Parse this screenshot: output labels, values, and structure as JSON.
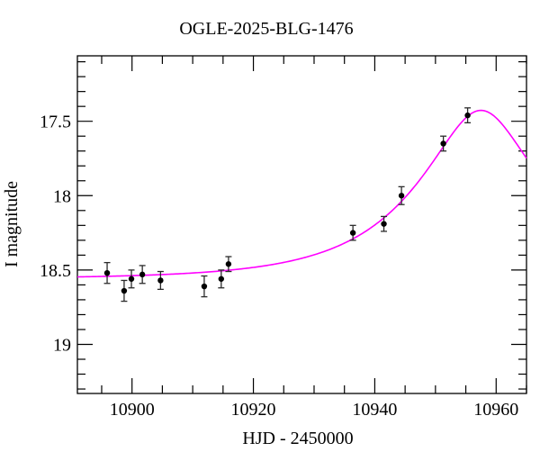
{
  "title": "OGLE-2025-BLG-1476",
  "chart_data": {
    "type": "scatter",
    "title": "OGLE-2025-BLG-1476",
    "xlabel": "HJD - 2450000",
    "ylabel": "I magnitude",
    "x_axis": {
      "lim": [
        10891,
        10965
      ],
      "major_ticks": [
        10900,
        10920,
        10940,
        10960
      ],
      "major_tick_labels": [
        "10900",
        "10920",
        "10940",
        "10960"
      ],
      "minor_step": 5
    },
    "y_axis": {
      "inverted": true,
      "lim_bottom_top": [
        19.33,
        17.06
      ],
      "major_ticks": [
        17.5,
        18.0,
        18.5,
        19.0
      ],
      "major_tick_labels": [
        "17.5",
        "18",
        "18.5",
        "19"
      ],
      "minor_step": 0.1
    },
    "grid": false,
    "legend": null,
    "points": [
      {
        "t": 10895.9,
        "mag": 18.52,
        "err": 0.07
      },
      {
        "t": 10898.7,
        "mag": 18.64,
        "err": 0.07
      },
      {
        "t": 10899.9,
        "mag": 18.56,
        "err": 0.06
      },
      {
        "t": 10901.7,
        "mag": 18.53,
        "err": 0.06
      },
      {
        "t": 10904.7,
        "mag": 18.57,
        "err": 0.06
      },
      {
        "t": 10911.9,
        "mag": 18.61,
        "err": 0.07
      },
      {
        "t": 10914.7,
        "mag": 18.56,
        "err": 0.06
      },
      {
        "t": 10915.9,
        "mag": 18.46,
        "err": 0.05
      },
      {
        "t": 10936.4,
        "mag": 18.25,
        "err": 0.05
      },
      {
        "t": 10941.5,
        "mag": 18.19,
        "err": 0.05
      },
      {
        "t": 10944.4,
        "mag": 18.0,
        "err": 0.06
      },
      {
        "t": 10951.3,
        "mag": 17.65,
        "err": 0.05
      },
      {
        "t": 10955.3,
        "mag": 17.46,
        "err": 0.05
      }
    ],
    "model_curve": {
      "kind": "paczynski-microlensing",
      "t0": 10957.5,
      "tE": 20.5,
      "u0": 0.37,
      "baseline_mag": 18.56,
      "peak_mag": 17.43
    },
    "colors": {
      "background": "#ffffff",
      "axes": "#000000",
      "points": "#000000",
      "error_bars": "#2b2b2b",
      "curve": "#ff00ff",
      "text": "#000000"
    }
  }
}
